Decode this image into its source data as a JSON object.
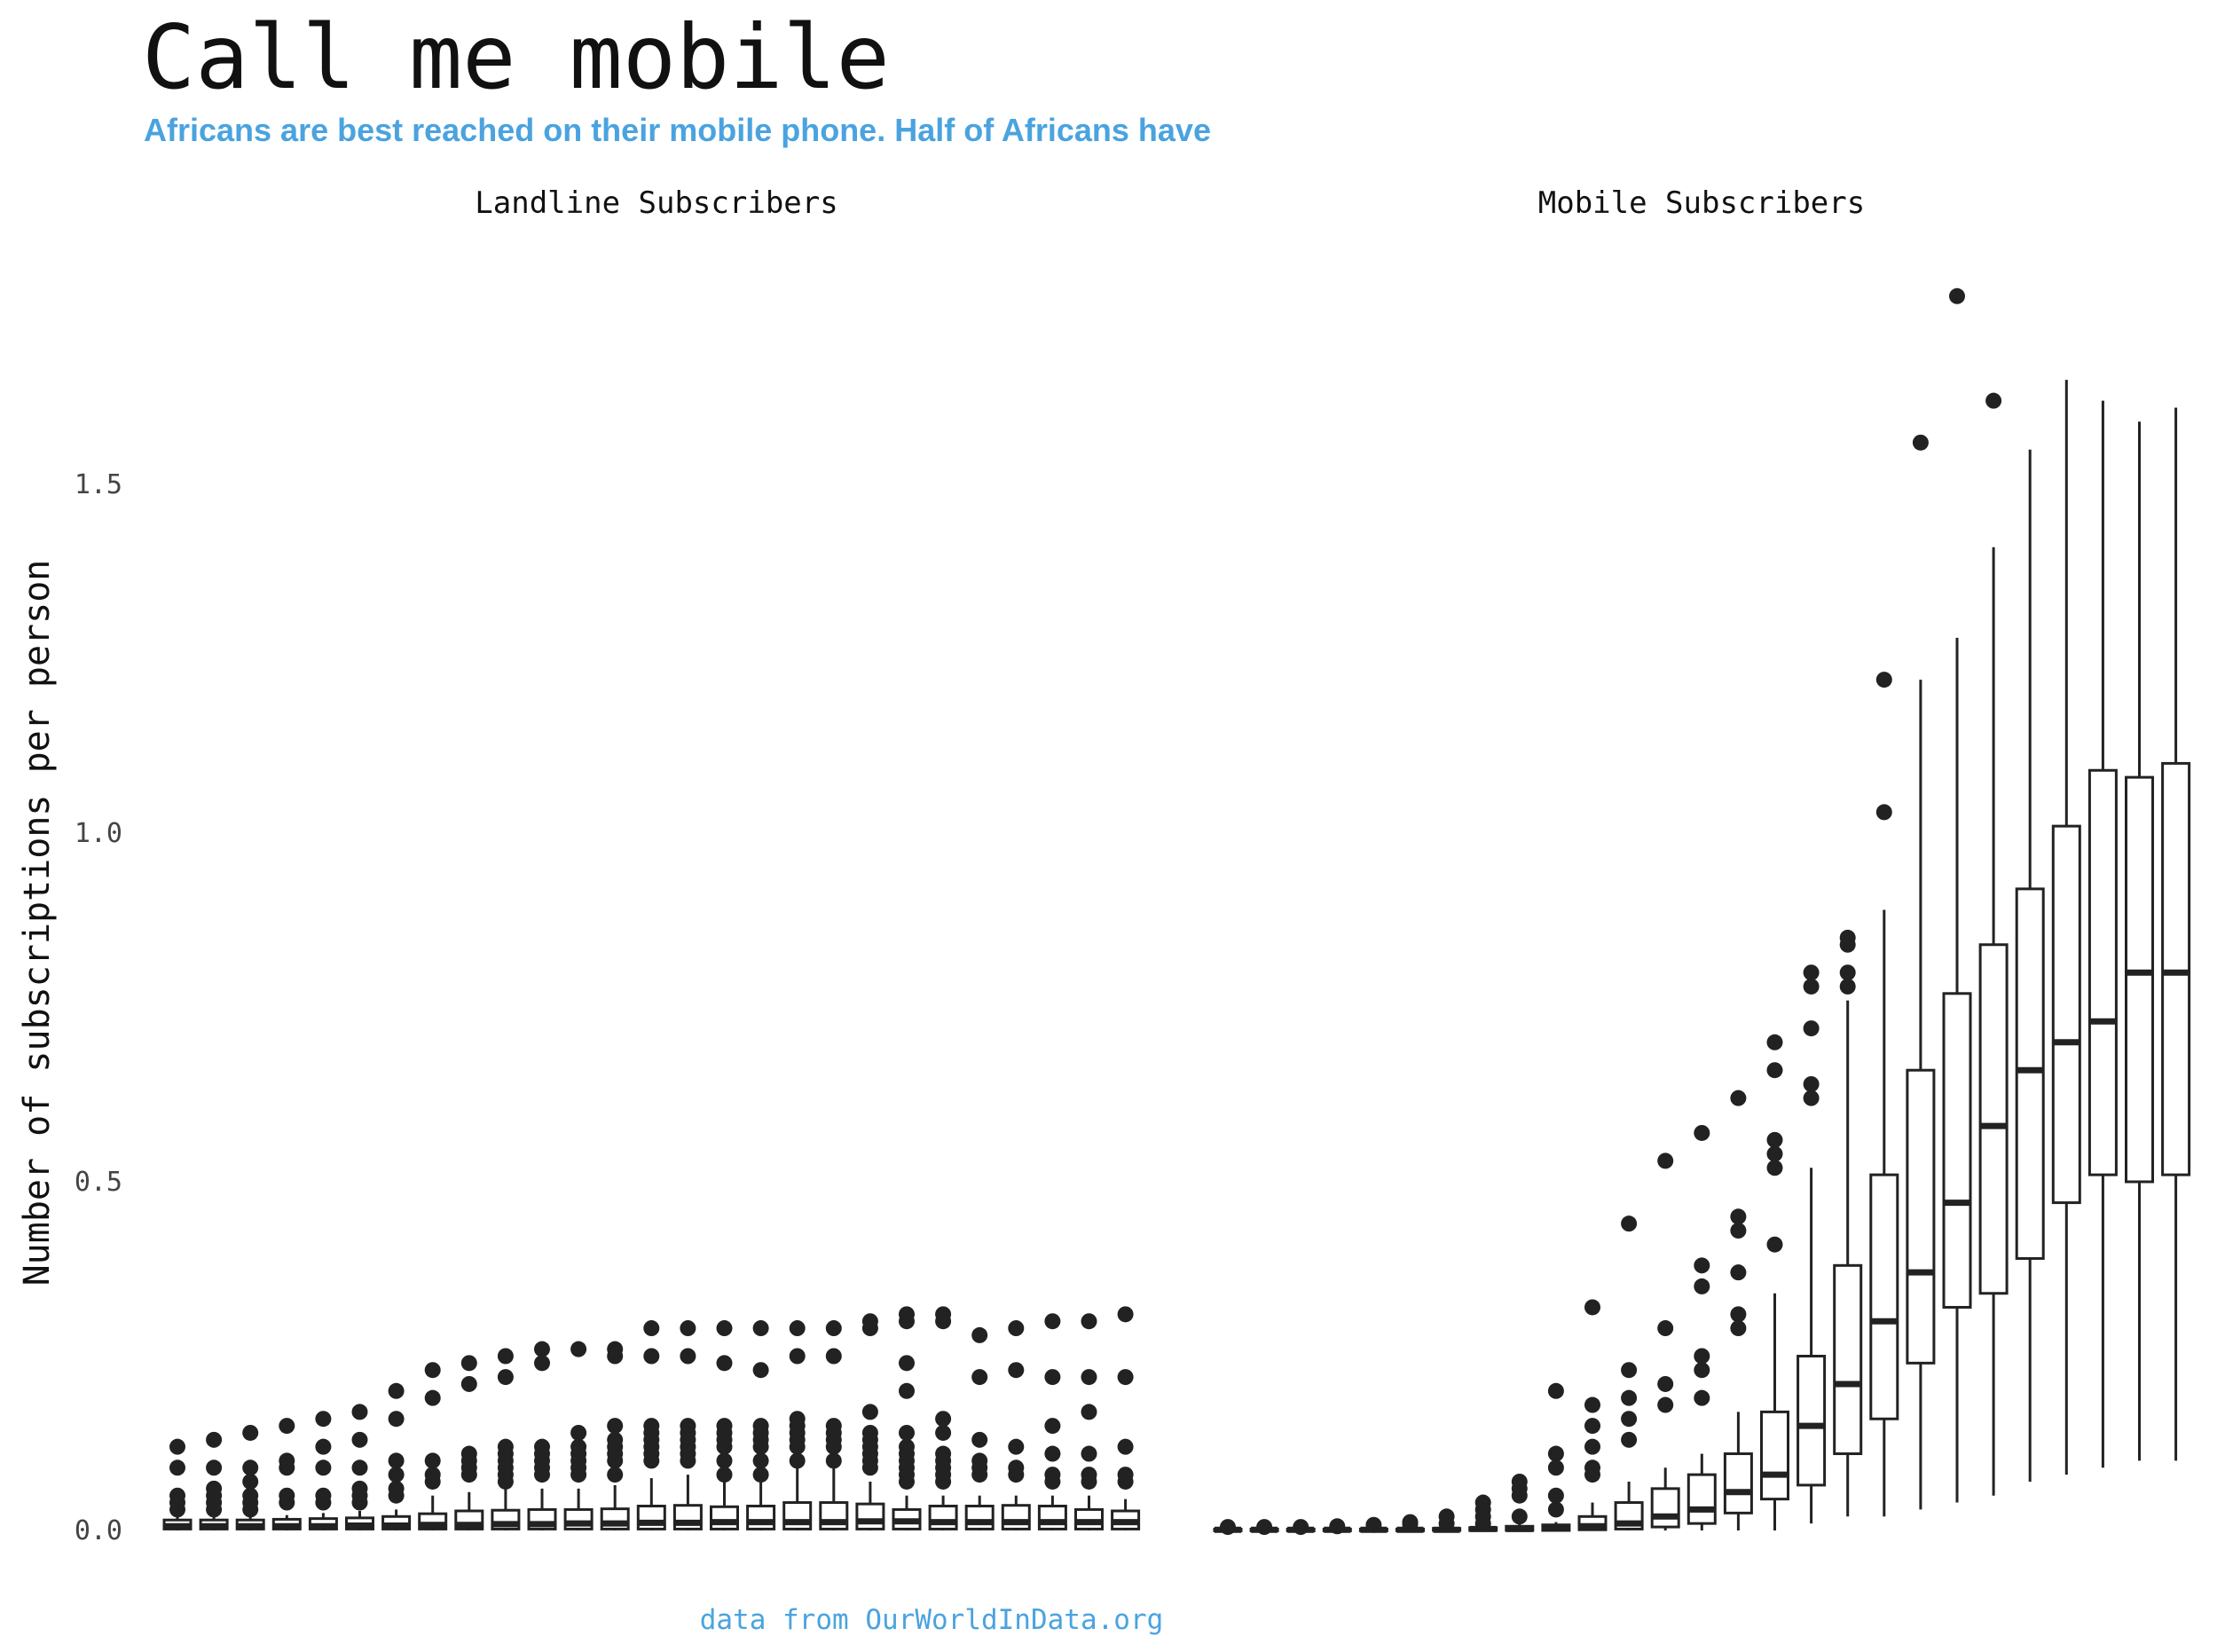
{
  "title": "Call me mobile",
  "subtitle": "Africans are best reached on their mobile phone. Half of Africans have",
  "caption": "data from OurWorldInData.org",
  "colors": {
    "accent": "#4aa3df",
    "ink": "#222222"
  },
  "chart_data": {
    "type": "boxplot",
    "ylabel": "Number of subscriptions per person",
    "ylim": [
      0,
      1.78
    ],
    "yticks": [
      0.0,
      0.5,
      1.0,
      1.5
    ],
    "ytick_labels": [
      "0.0",
      "0.5",
      "1.0",
      "1.5"
    ],
    "grid": false,
    "panels": [
      {
        "name": "Landline Subscribers",
        "boxes": [
          {
            "q1": 0.002,
            "median": 0.006,
            "q3": 0.015,
            "whisk_lo": 0,
            "whisk_hi": 0.02,
            "outliers": [
              0.03,
              0.04,
              0.05,
              0.09,
              0.12
            ]
          },
          {
            "q1": 0.002,
            "median": 0.006,
            "q3": 0.015,
            "whisk_lo": 0,
            "whisk_hi": 0.02,
            "outliers": [
              0.03,
              0.04,
              0.05,
              0.06,
              0.09,
              0.13
            ]
          },
          {
            "q1": 0.002,
            "median": 0.006,
            "q3": 0.015,
            "whisk_lo": 0,
            "whisk_hi": 0.02,
            "outliers": [
              0.03,
              0.04,
              0.05,
              0.07,
              0.09,
              0.14
            ]
          },
          {
            "q1": 0.002,
            "median": 0.006,
            "q3": 0.016,
            "whisk_lo": 0,
            "whisk_hi": 0.022,
            "outliers": [
              0.04,
              0.05,
              0.09,
              0.1,
              0.15
            ]
          },
          {
            "q1": 0.002,
            "median": 0.006,
            "q3": 0.017,
            "whisk_lo": 0,
            "whisk_hi": 0.025,
            "outliers": [
              0.04,
              0.05,
              0.09,
              0.12,
              0.16
            ]
          },
          {
            "q1": 0.002,
            "median": 0.007,
            "q3": 0.018,
            "whisk_lo": 0,
            "whisk_hi": 0.028,
            "outliers": [
              0.04,
              0.05,
              0.06,
              0.09,
              0.13,
              0.17
            ]
          },
          {
            "q1": 0.002,
            "median": 0.007,
            "q3": 0.02,
            "whisk_lo": 0,
            "whisk_hi": 0.03,
            "outliers": [
              0.05,
              0.06,
              0.08,
              0.1,
              0.16,
              0.2
            ]
          },
          {
            "q1": 0.002,
            "median": 0.008,
            "q3": 0.024,
            "whisk_lo": 0,
            "whisk_hi": 0.05,
            "outliers": [
              0.07,
              0.08,
              0.1,
              0.19,
              0.23
            ]
          },
          {
            "q1": 0.002,
            "median": 0.008,
            "q3": 0.028,
            "whisk_lo": 0,
            "whisk_hi": 0.055,
            "outliers": [
              0.08,
              0.09,
              0.1,
              0.11,
              0.21,
              0.24
            ]
          },
          {
            "q1": 0.002,
            "median": 0.009,
            "q3": 0.029,
            "whisk_lo": 0,
            "whisk_hi": 0.06,
            "outliers": [
              0.07,
              0.08,
              0.09,
              0.1,
              0.11,
              0.12,
              0.22,
              0.25
            ]
          },
          {
            "q1": 0.002,
            "median": 0.009,
            "q3": 0.03,
            "whisk_lo": 0,
            "whisk_hi": 0.06,
            "outliers": [
              0.08,
              0.09,
              0.1,
              0.11,
              0.12,
              0.24,
              0.26
            ]
          },
          {
            "q1": 0.002,
            "median": 0.01,
            "q3": 0.03,
            "whisk_lo": 0,
            "whisk_hi": 0.06,
            "outliers": [
              0.08,
              0.09,
              0.1,
              0.11,
              0.12,
              0.14,
              0.26
            ]
          },
          {
            "q1": 0.002,
            "median": 0.01,
            "q3": 0.031,
            "whisk_lo": 0,
            "whisk_hi": 0.065,
            "outliers": [
              0.08,
              0.1,
              0.11,
              0.12,
              0.13,
              0.15,
              0.25,
              0.26
            ]
          },
          {
            "q1": 0.002,
            "median": 0.011,
            "q3": 0.035,
            "whisk_lo": 0,
            "whisk_hi": 0.075,
            "outliers": [
              0.1,
              0.11,
              0.12,
              0.13,
              0.14,
              0.15,
              0.25,
              0.29
            ]
          },
          {
            "q1": 0.002,
            "median": 0.011,
            "q3": 0.036,
            "whisk_lo": 0,
            "whisk_hi": 0.08,
            "outliers": [
              0.1,
              0.11,
              0.12,
              0.13,
              0.14,
              0.15,
              0.25,
              0.29
            ]
          },
          {
            "q1": 0.002,
            "median": 0.012,
            "q3": 0.034,
            "whisk_lo": 0,
            "whisk_hi": 0.075,
            "outliers": [
              0.08,
              0.1,
              0.12,
              0.13,
              0.14,
              0.15,
              0.24,
              0.29
            ]
          },
          {
            "q1": 0.002,
            "median": 0.012,
            "q3": 0.035,
            "whisk_lo": 0,
            "whisk_hi": 0.08,
            "outliers": [
              0.08,
              0.1,
              0.12,
              0.13,
              0.14,
              0.15,
              0.23,
              0.29
            ]
          },
          {
            "q1": 0.002,
            "median": 0.012,
            "q3": 0.04,
            "whisk_lo": 0,
            "whisk_hi": 0.09,
            "outliers": [
              0.1,
              0.12,
              0.13,
              0.14,
              0.15,
              0.16,
              0.25,
              0.29
            ]
          },
          {
            "q1": 0.002,
            "median": 0.012,
            "q3": 0.04,
            "whisk_lo": 0,
            "whisk_hi": 0.09,
            "outliers": [
              0.1,
              0.12,
              0.13,
              0.14,
              0.15,
              0.25,
              0.29
            ]
          },
          {
            "q1": 0.002,
            "median": 0.013,
            "q3": 0.038,
            "whisk_lo": 0,
            "whisk_hi": 0.07,
            "outliers": [
              0.09,
              0.1,
              0.11,
              0.12,
              0.13,
              0.14,
              0.17,
              0.29,
              0.3
            ]
          },
          {
            "q1": 0.002,
            "median": 0.013,
            "q3": 0.03,
            "whisk_lo": 0,
            "whisk_hi": 0.05,
            "outliers": [
              0.07,
              0.08,
              0.09,
              0.1,
              0.11,
              0.12,
              0.14,
              0.2,
              0.24,
              0.3,
              0.31
            ]
          },
          {
            "q1": 0.002,
            "median": 0.012,
            "q3": 0.035,
            "whisk_lo": 0,
            "whisk_hi": 0.05,
            "outliers": [
              0.07,
              0.08,
              0.09,
              0.1,
              0.11,
              0.14,
              0.16,
              0.3,
              0.31
            ]
          },
          {
            "q1": 0.002,
            "median": 0.012,
            "q3": 0.035,
            "whisk_lo": 0,
            "whisk_hi": 0.05,
            "outliers": [
              0.08,
              0.09,
              0.1,
              0.13,
              0.22,
              0.28
            ]
          },
          {
            "q1": 0.002,
            "median": 0.012,
            "q3": 0.036,
            "whisk_lo": 0,
            "whisk_hi": 0.05,
            "outliers": [
              0.08,
              0.09,
              0.12,
              0.23,
              0.29
            ]
          },
          {
            "q1": 0.002,
            "median": 0.012,
            "q3": 0.035,
            "whisk_lo": 0,
            "whisk_hi": 0.05,
            "outliers": [
              0.07,
              0.08,
              0.11,
              0.15,
              0.22,
              0.3
            ]
          },
          {
            "q1": 0.002,
            "median": 0.012,
            "q3": 0.03,
            "whisk_lo": 0,
            "whisk_hi": 0.05,
            "outliers": [
              0.07,
              0.08,
              0.11,
              0.17,
              0.22,
              0.3
            ]
          },
          {
            "q1": 0.002,
            "median": 0.012,
            "q3": 0.028,
            "whisk_lo": 0,
            "whisk_hi": 0.045,
            "outliers": [
              0.07,
              0.08,
              0.12,
              0.22,
              0.31
            ]
          }
        ]
      },
      {
        "name": "Mobile Subscribers",
        "boxes": [
          {
            "q1": 0,
            "median": 0.001,
            "q3": 0.002,
            "whisk_lo": 0,
            "whisk_hi": 0.003,
            "outliers": [
              0.005
            ]
          },
          {
            "q1": 0,
            "median": 0.001,
            "q3": 0.002,
            "whisk_lo": 0,
            "whisk_hi": 0.003,
            "outliers": [
              0.005
            ]
          },
          {
            "q1": 0,
            "median": 0.001,
            "q3": 0.002,
            "whisk_lo": 0,
            "whisk_hi": 0.003,
            "outliers": [
              0.005
            ]
          },
          {
            "q1": 0,
            "median": 0.001,
            "q3": 0.002,
            "whisk_lo": 0,
            "whisk_hi": 0.004,
            "outliers": [
              0.006
            ]
          },
          {
            "q1": 0,
            "median": 0.001,
            "q3": 0.002,
            "whisk_lo": 0,
            "whisk_hi": 0.004,
            "outliers": [
              0.008
            ]
          },
          {
            "q1": 0,
            "median": 0.001,
            "q3": 0.002,
            "whisk_lo": 0,
            "whisk_hi": 0.004,
            "outliers": [
              0.009,
              0.012
            ]
          },
          {
            "q1": 0,
            "median": 0.001,
            "q3": 0.003,
            "whisk_lo": 0,
            "whisk_hi": 0.005,
            "outliers": [
              0.01,
              0.02
            ]
          },
          {
            "q1": 0,
            "median": 0.002,
            "q3": 0.004,
            "whisk_lo": 0,
            "whisk_hi": 0.006,
            "outliers": [
              0.01,
              0.02,
              0.03,
              0.04
            ]
          },
          {
            "q1": 0,
            "median": 0.002,
            "q3": 0.006,
            "whisk_lo": 0,
            "whisk_hi": 0.01,
            "outliers": [
              0.02,
              0.05,
              0.06,
              0.07
            ]
          },
          {
            "q1": 0,
            "median": 0.003,
            "q3": 0.008,
            "whisk_lo": 0,
            "whisk_hi": 0.012,
            "outliers": [
              0.03,
              0.05,
              0.09,
              0.11,
              0.2
            ]
          },
          {
            "q1": 0.001,
            "median": 0.006,
            "q3": 0.02,
            "whisk_lo": 0,
            "whisk_hi": 0.04,
            "outliers": [
              0.08,
              0.09,
              0.12,
              0.15,
              0.18,
              0.32
            ]
          },
          {
            "q1": 0.002,
            "median": 0.01,
            "q3": 0.04,
            "whisk_lo": 0,
            "whisk_hi": 0.07,
            "outliers": [
              0.13,
              0.16,
              0.19,
              0.23,
              0.44
            ]
          },
          {
            "q1": 0.005,
            "median": 0.02,
            "q3": 0.06,
            "whisk_lo": 0,
            "whisk_hi": 0.09,
            "outliers": [
              0.18,
              0.21,
              0.29,
              0.53
            ]
          },
          {
            "q1": 0.01,
            "median": 0.03,
            "q3": 0.08,
            "whisk_lo": 0,
            "whisk_hi": 0.11,
            "outliers": [
              0.19,
              0.23,
              0.25,
              0.35,
              0.38,
              0.57
            ]
          },
          {
            "q1": 0.025,
            "median": 0.055,
            "q3": 0.11,
            "whisk_lo": 0,
            "whisk_hi": 0.17,
            "outliers": [
              0.29,
              0.31,
              0.37,
              0.43,
              0.45,
              0.62
            ]
          },
          {
            "q1": 0.045,
            "median": 0.08,
            "q3": 0.17,
            "whisk_lo": 0,
            "whisk_hi": 0.34,
            "outliers": [
              0.41,
              0.52,
              0.54,
              0.56,
              0.66,
              0.7
            ]
          },
          {
            "q1": 0.065,
            "median": 0.15,
            "q3": 0.25,
            "whisk_lo": 0.01,
            "whisk_hi": 0.52,
            "outliers": [
              0.62,
              0.64,
              0.72,
              0.78,
              0.8
            ]
          },
          {
            "q1": 0.11,
            "median": 0.21,
            "q3": 0.38,
            "whisk_lo": 0.02,
            "whisk_hi": 0.76,
            "outliers": [
              0.78,
              0.8,
              0.84,
              0.85
            ]
          },
          {
            "q1": 0.16,
            "median": 0.3,
            "q3": 0.51,
            "whisk_lo": 0.02,
            "whisk_hi": 0.89,
            "outliers": [
              1.03,
              1.22
            ]
          },
          {
            "q1": 0.24,
            "median": 0.37,
            "q3": 0.66,
            "whisk_lo": 0.03,
            "whisk_hi": 1.22,
            "outliers": [
              1.56
            ]
          },
          {
            "q1": 0.32,
            "median": 0.47,
            "q3": 0.77,
            "whisk_lo": 0.04,
            "whisk_hi": 1.28,
            "outliers": [
              1.77
            ]
          },
          {
            "q1": 0.34,
            "median": 0.58,
            "q3": 0.84,
            "whisk_lo": 0.05,
            "whisk_hi": 1.41,
            "outliers": [
              1.62
            ]
          },
          {
            "q1": 0.39,
            "median": 0.66,
            "q3": 0.92,
            "whisk_lo": 0.07,
            "whisk_hi": 1.55,
            "outliers": []
          },
          {
            "q1": 0.47,
            "median": 0.7,
            "q3": 1.01,
            "whisk_lo": 0.08,
            "whisk_hi": 1.65,
            "outliers": []
          },
          {
            "q1": 0.51,
            "median": 0.73,
            "q3": 1.09,
            "whisk_lo": 0.09,
            "whisk_hi": 1.62,
            "outliers": []
          },
          {
            "q1": 0.5,
            "median": 0.8,
            "q3": 1.08,
            "whisk_lo": 0.1,
            "whisk_hi": 1.59,
            "outliers": []
          },
          {
            "q1": 0.51,
            "median": 0.8,
            "q3": 1.1,
            "whisk_lo": 0.1,
            "whisk_hi": 1.61,
            "outliers": []
          }
        ]
      }
    ]
  }
}
